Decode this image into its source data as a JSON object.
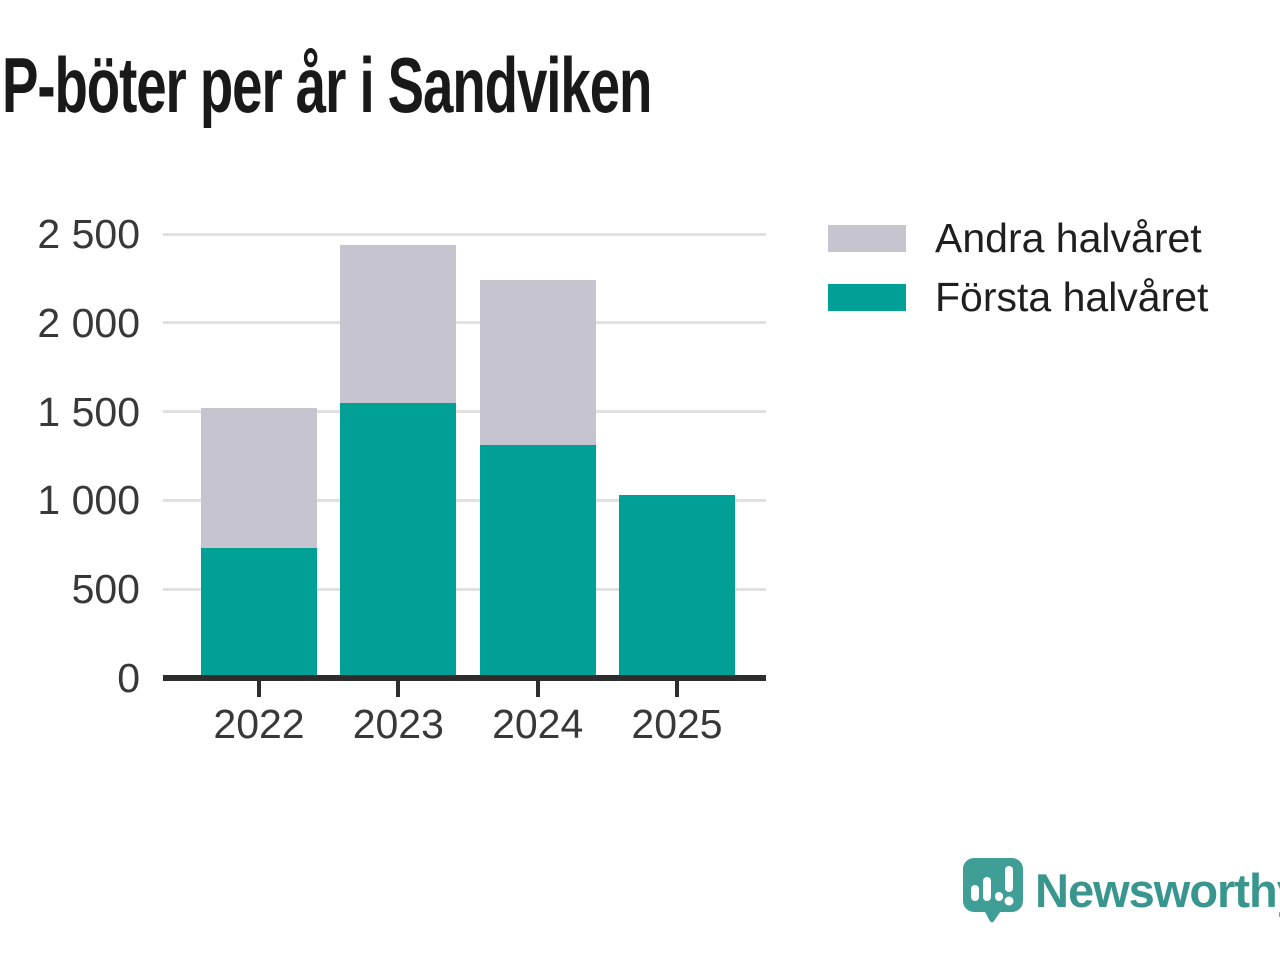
{
  "title": "P-böter per år i Sandviken",
  "chart_data": {
    "type": "bar",
    "stacked": true,
    "title": "P-böter per år i Sandviken",
    "categories": [
      "2022",
      "2023",
      "2024",
      "2025"
    ],
    "series": [
      {
        "name": "Första halvåret",
        "color": "#00a096",
        "values": [
          730,
          1550,
          1310,
          1030
        ]
      },
      {
        "name": "Andra halvåret",
        "color": "#c6c4ce",
        "values": [
          790,
          890,
          930,
          0
        ]
      }
    ],
    "totals": [
      1520,
      2440,
      2240,
      1030
    ],
    "xlabel": "",
    "ylabel": "",
    "ylim": [
      0,
      2500
    ],
    "y_ticks": [
      {
        "value": 2500,
        "label": "2 500"
      },
      {
        "value": 2000,
        "label": "2 000"
      },
      {
        "value": 1500,
        "label": "1 500"
      },
      {
        "value": 1000,
        "label": "1 000"
      },
      {
        "value": 500,
        "label": "500"
      },
      {
        "value": 0,
        "label": "0"
      }
    ],
    "grid": true,
    "legend_position": "top-right"
  },
  "legend": {
    "items": [
      {
        "label": "Andra halvåret",
        "color": "#c6c4ce"
      },
      {
        "label": "Första halvåret",
        "color": "#00a096"
      }
    ]
  },
  "branding": {
    "wordmark": "Newsworthy",
    "icon": "newsworthy-bubble-chart-icon",
    "color": "#38968e",
    "icon_fill": "#3f9e96"
  },
  "colors": {
    "background": "#ffffff",
    "title": "#191919",
    "axis_text": "#383838",
    "gridline": "#e1e1e1",
    "axis_line": "#2d2d2d"
  }
}
